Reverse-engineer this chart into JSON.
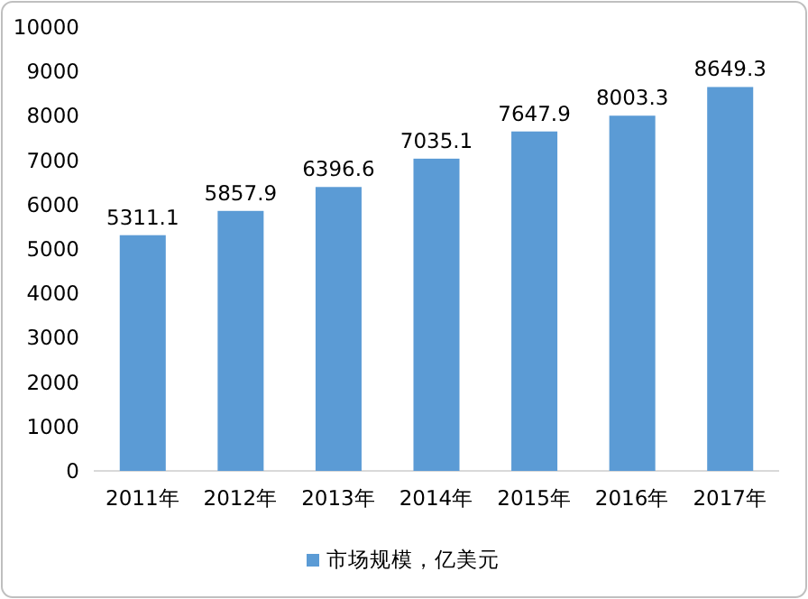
{
  "chart_data": {
    "type": "bar",
    "categories": [
      "2011年",
      "2012年",
      "2013年",
      "2014年",
      "2015年",
      "2016年",
      "2017年"
    ],
    "series": [
      {
        "name": "市场规模，亿美元",
        "color": "#5b9bd5",
        "values": [
          5311.1,
          5857.9,
          6396.6,
          7035.1,
          7647.9,
          8003.3,
          8649.3
        ]
      }
    ],
    "ylim": [
      0,
      10000
    ],
    "yticks": [
      0,
      1000,
      2000,
      3000,
      4000,
      5000,
      6000,
      7000,
      8000,
      9000,
      10000
    ],
    "data_labels": true,
    "legend": "bottom"
  }
}
